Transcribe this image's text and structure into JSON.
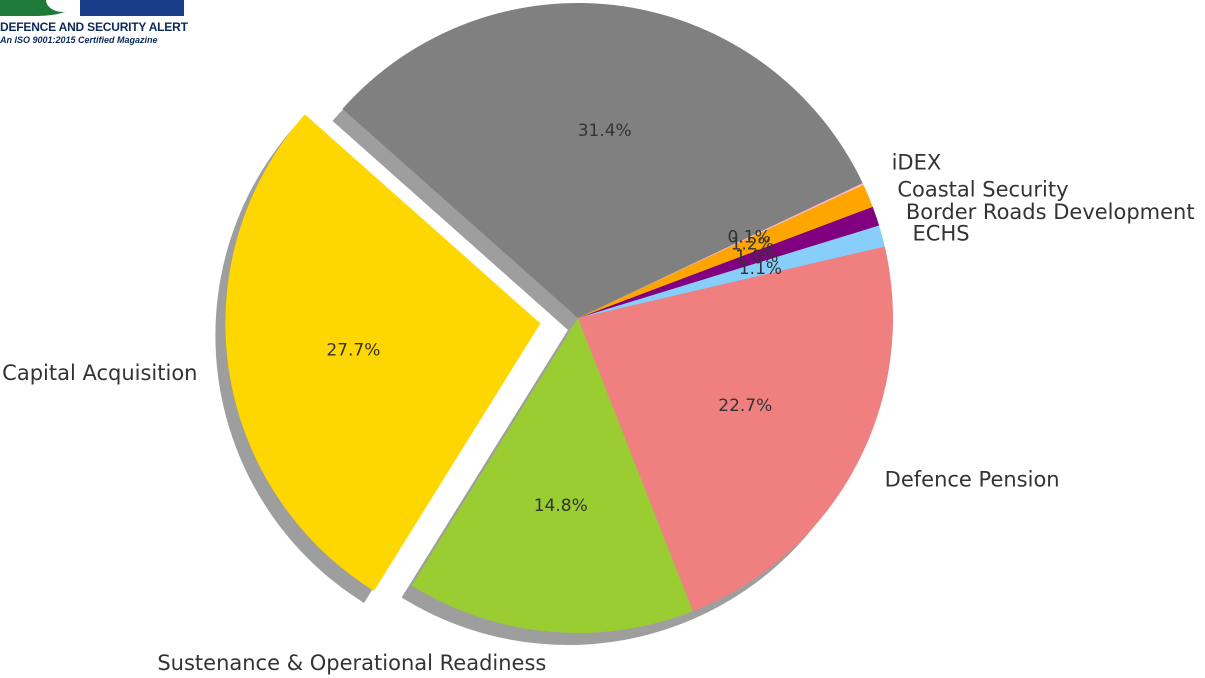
{
  "logo": {
    "line1": "DEFENCE AND SECURITY ALERT",
    "line2": "An ISO 9001:2015 Certified Magazine"
  },
  "chart_data": {
    "type": "pie",
    "title": "",
    "start_angle_deg": 25,
    "direction": "counterclockwise",
    "shadow": true,
    "slices": [
      {
        "label": "iDEX",
        "value": 0.1,
        "pct_text": "0.1%",
        "color": "#ffb6c1",
        "explode": false
      },
      {
        "label": "",
        "value": 31.4,
        "pct_text": "31.4%",
        "color": "#808080",
        "explode": false
      },
      {
        "label": "Capital Acquisition",
        "value": 27.7,
        "pct_text": "27.7%",
        "color": "#ffd700",
        "explode": true
      },
      {
        "label": "Sustenance & Operational Readiness",
        "value": 14.8,
        "pct_text": "14.8%",
        "color": "#9acd32",
        "explode": false
      },
      {
        "label": "Defence Pension",
        "value": 22.7,
        "pct_text": "22.7%",
        "color": "#f08080",
        "explode": false
      },
      {
        "label": "ECHS",
        "value": 1.1,
        "pct_text": "1.1%",
        "color": "#87cefa",
        "explode": false
      },
      {
        "label": "Border Roads Development",
        "value": 1.0,
        "pct_text": "1.0%",
        "color": "#800080",
        "explode": false
      },
      {
        "label": "Coastal Security",
        "value": 1.2,
        "pct_text": "1.2%",
        "color": "#ffa500",
        "explode": false
      }
    ]
  }
}
